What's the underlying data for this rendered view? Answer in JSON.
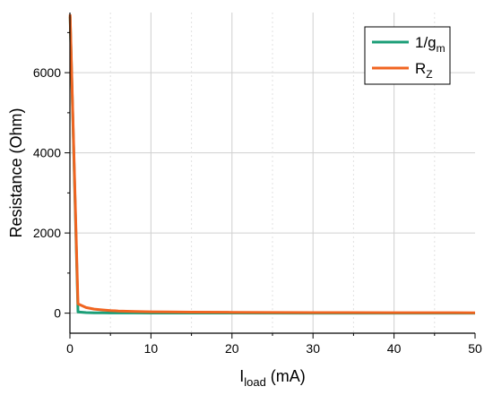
{
  "chart_data": {
    "type": "line",
    "title": "",
    "xlabel": {
      "main": "I",
      "sub": "load",
      "rest": " (mA)"
    },
    "ylabel": "Resistance (Ohm)",
    "xlim": [
      0,
      50
    ],
    "ylim": [
      -500,
      7500
    ],
    "x_ticks": [
      0,
      10,
      20,
      30,
      40,
      50
    ],
    "y_ticks": [
      0,
      2000,
      4000,
      6000
    ],
    "grid": true,
    "legend_position": "top-right",
    "series": [
      {
        "name": {
          "main": "1/g",
          "sub": "m"
        },
        "color": "#1b9e77",
        "x": [
          0.02,
          1,
          2,
          3,
          4,
          5,
          6,
          8,
          10,
          15,
          20,
          30,
          40,
          50
        ],
        "y": [
          7400,
          30,
          15,
          10,
          8,
          6,
          5,
          4,
          3,
          2,
          2,
          1,
          1,
          1
        ]
      },
      {
        "name": {
          "main": "R",
          "sub": "Z"
        },
        "color": "#f06420",
        "x": [
          0.02,
          1,
          2,
          3,
          4,
          5,
          6,
          7,
          8,
          10,
          12,
          15,
          20,
          25,
          30,
          40,
          50
        ],
        "y": [
          7450,
          230,
          140,
          100,
          80,
          65,
          55,
          48,
          42,
          35,
          30,
          25,
          20,
          17,
          15,
          12,
          10
        ]
      }
    ]
  }
}
